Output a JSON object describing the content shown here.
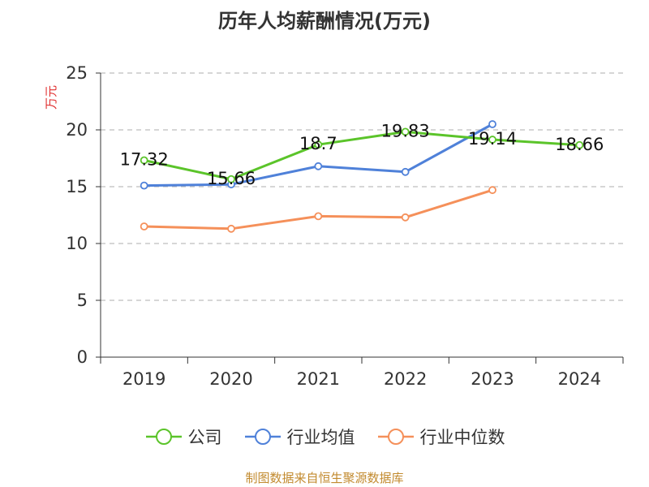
{
  "title": "历年人均薪酬情况(万元)",
  "source": "制图数据来自恒生聚源数据库",
  "chart_data": {
    "type": "line",
    "title": "历年人均薪酬情况(万元)",
    "xlabel": "",
    "ylabel": "万元",
    "ylim": [
      0,
      25
    ],
    "yticks": [
      0,
      5,
      10,
      15,
      20,
      25
    ],
    "grid": true,
    "legend_position": "bottom",
    "categories": [
      "2019",
      "2020",
      "2021",
      "2022",
      "2023",
      "2024"
    ],
    "series": [
      {
        "name": "公司",
        "color": "#5bc42a",
        "show_labels": true,
        "values": [
          17.32,
          15.66,
          18.7,
          19.83,
          19.14,
          18.66
        ]
      },
      {
        "name": "行业均值",
        "color": "#4f81d9",
        "show_labels": false,
        "values": [
          15.1,
          15.2,
          16.8,
          16.3,
          20.5,
          null
        ]
      },
      {
        "name": "行业中位数",
        "color": "#f5905a",
        "show_labels": false,
        "values": [
          11.5,
          11.3,
          12.4,
          12.3,
          14.7,
          null
        ]
      }
    ]
  }
}
